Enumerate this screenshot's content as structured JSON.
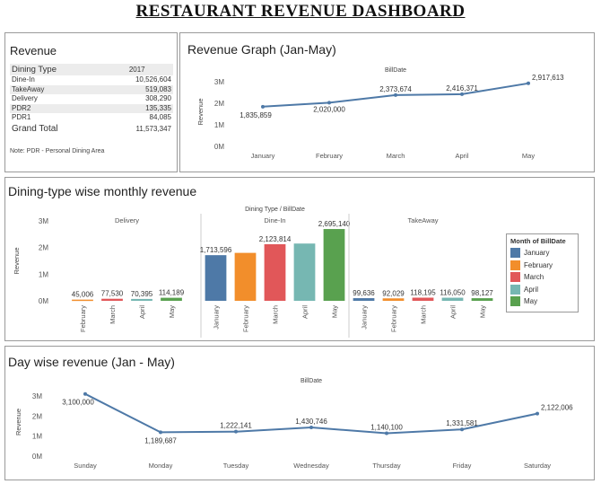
{
  "dashboard": {
    "title": "RESTAURANT REVENUE DASHBOARD"
  },
  "revenue_table": {
    "title": "Revenue",
    "col_header": "Dining Type",
    "year": "2017",
    "rows": [
      {
        "name": "Dine-In",
        "value": "10,526,604"
      },
      {
        "name": "TakeAway",
        "value": "519,083"
      },
      {
        "name": "Delivery",
        "value": "308,290"
      },
      {
        "name": "PDR2",
        "value": "135,335"
      },
      {
        "name": "PDR1",
        "value": "84,085"
      }
    ],
    "total_label": "Grand Total",
    "total_value": "11,573,347",
    "note": "Note: PDR - Personal Dining Area"
  },
  "colors": {
    "line": "#4e79a7",
    "January": "#4e79a7",
    "February": "#f28e2b",
    "March": "#e15759",
    "April": "#76b7b2",
    "May": "#59a14f"
  },
  "chart_data": [
    {
      "type": "line",
      "title": "Revenue Graph (Jan-May)",
      "header": "BillDate",
      "ylabel": "Revenue",
      "x": [
        "January",
        "February",
        "March",
        "April",
        "May"
      ],
      "y": [
        1835859,
        2020000,
        2373674,
        2416371,
        2917613
      ],
      "labels": [
        "1,835,859",
        "2,020,000",
        "2,373,674",
        "2,416,371",
        "2,917,613"
      ],
      "yticks": [
        "0M",
        "1M",
        "2M",
        "3M"
      ],
      "ylim": [
        0,
        3200000
      ]
    },
    {
      "type": "bar",
      "title": "Dining-type wise monthly revenue",
      "header": "Dining Type / BillDate",
      "ylabel": "Revenue",
      "yticks": [
        "0M",
        "1M",
        "2M",
        "3M"
      ],
      "ylim": [
        0,
        3000000
      ],
      "legend_title": "Month of BillDate",
      "legend": [
        "January",
        "February",
        "March",
        "April",
        "May"
      ],
      "legend_position": "right",
      "groups": [
        {
          "name": "Delivery",
          "bars": [
            {
              "month": "February",
              "value": 45006,
              "label": "45,006"
            },
            {
              "month": "March",
              "value": 77530,
              "label": "77,530"
            },
            {
              "month": "April",
              "value": 70395,
              "label": "70,395"
            },
            {
              "month": "May",
              "value": 114189,
              "label": "114,189"
            }
          ]
        },
        {
          "name": "Dine-In",
          "bars": [
            {
              "month": "January",
              "value": 1713596,
              "label": "1,713,596"
            },
            {
              "month": "February",
              "value": 1800000,
              "label": ""
            },
            {
              "month": "March",
              "value": 2123814,
              "label": "2,123,814"
            },
            {
              "month": "April",
              "value": 2150000,
              "label": ""
            },
            {
              "month": "May",
              "value": 2695140,
              "label": "2,695,140"
            }
          ]
        },
        {
          "name": "TakeAway",
          "bars": [
            {
              "month": "January",
              "value": 99636,
              "label": "99,636"
            },
            {
              "month": "February",
              "value": 92029,
              "label": "92,029"
            },
            {
              "month": "March",
              "value": 118195,
              "label": "118,195"
            },
            {
              "month": "April",
              "value": 116050,
              "label": "116,050"
            },
            {
              "month": "May",
              "value": 98127,
              "label": "98,127"
            }
          ]
        }
      ]
    },
    {
      "type": "line",
      "title": "Day wise revenue (Jan - May)",
      "header": "BillDate",
      "ylabel": "Revenue",
      "x": [
        "Sunday",
        "Monday",
        "Tuesday",
        "Wednesday",
        "Thursday",
        "Friday",
        "Saturday"
      ],
      "y": [
        3100000,
        1189687,
        1222141,
        1430746,
        1140100,
        1331581,
        2122006
      ],
      "labels": [
        "3,100,000",
        "1,189,687",
        "1,222,141",
        "1,430,746",
        "1,140,100",
        "1,331,581",
        "2,122,006"
      ],
      "yticks": [
        "0M",
        "1M",
        "2M",
        "3M"
      ],
      "ylim": [
        0,
        3400000
      ]
    }
  ]
}
